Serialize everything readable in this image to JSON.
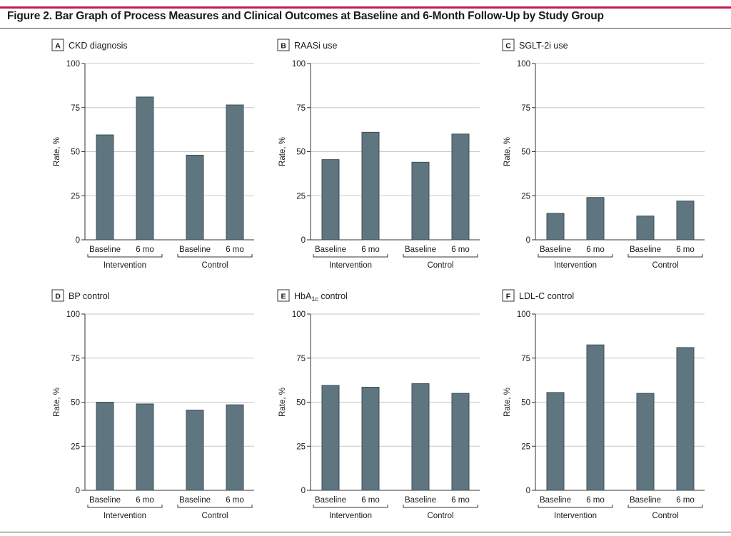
{
  "figure": {
    "title": "Figure 2. Bar Graph of Process Measures and Clinical Outcomes at Baseline and 6-Month Follow-Up by Study Group"
  },
  "colors": {
    "bar": "#5f7580",
    "grid": "#c8c8c8",
    "accent_rule": "#c2185b"
  },
  "chart_data": [
    {
      "panel": "A",
      "title": "CKD diagnosis",
      "type": "bar",
      "ylabel": "Rate, %",
      "ylim": [
        0,
        100
      ],
      "yticks": [
        0,
        25,
        50,
        75,
        100
      ],
      "grid": true,
      "groups": [
        "Intervention",
        "Control"
      ],
      "categories": [
        "Baseline",
        "6 mo"
      ],
      "values": [
        [
          59.5,
          81
        ],
        [
          48,
          76.5
        ]
      ]
    },
    {
      "panel": "B",
      "title": "RAASi use",
      "type": "bar",
      "ylabel": "Rate, %",
      "ylim": [
        0,
        100
      ],
      "yticks": [
        0,
        25,
        50,
        75,
        100
      ],
      "grid": true,
      "groups": [
        "Intervention",
        "Control"
      ],
      "categories": [
        "Baseline",
        "6 mo"
      ],
      "values": [
        [
          45.5,
          61
        ],
        [
          44,
          60
        ]
      ]
    },
    {
      "panel": "C",
      "title": "SGLT-2i use",
      "type": "bar",
      "ylabel": "Rate, %",
      "ylim": [
        0,
        100
      ],
      "yticks": [
        0,
        25,
        50,
        75,
        100
      ],
      "grid": true,
      "groups": [
        "Intervention",
        "Control"
      ],
      "categories": [
        "Baseline",
        "6 mo"
      ],
      "values": [
        [
          15,
          24
        ],
        [
          13.5,
          22
        ]
      ]
    },
    {
      "panel": "D",
      "title": "BP control",
      "type": "bar",
      "ylabel": "Rate, %",
      "ylim": [
        0,
        100
      ],
      "yticks": [
        0,
        25,
        50,
        75,
        100
      ],
      "grid": true,
      "groups": [
        "Intervention",
        "Control"
      ],
      "categories": [
        "Baseline",
        "6 mo"
      ],
      "values": [
        [
          50,
          49
        ],
        [
          45.5,
          48.5
        ]
      ]
    },
    {
      "panel": "E",
      "title": "HbA",
      "title_sub": "1c",
      "title_suffix": " control",
      "type": "bar",
      "ylabel": "Rate, %",
      "ylim": [
        0,
        100
      ],
      "yticks": [
        0,
        25,
        50,
        75,
        100
      ],
      "grid": true,
      "groups": [
        "Intervention",
        "Control"
      ],
      "categories": [
        "Baseline",
        "6 mo"
      ],
      "values": [
        [
          59.5,
          58.5
        ],
        [
          60.5,
          55
        ]
      ]
    },
    {
      "panel": "F",
      "title": "LDL-C control",
      "type": "bar",
      "ylabel": "Rate, %",
      "ylim": [
        0,
        100
      ],
      "yticks": [
        0,
        25,
        50,
        75,
        100
      ],
      "grid": true,
      "groups": [
        "Intervention",
        "Control"
      ],
      "categories": [
        "Baseline",
        "6 mo"
      ],
      "values": [
        [
          55.5,
          82.5
        ],
        [
          55,
          81
        ]
      ]
    }
  ]
}
